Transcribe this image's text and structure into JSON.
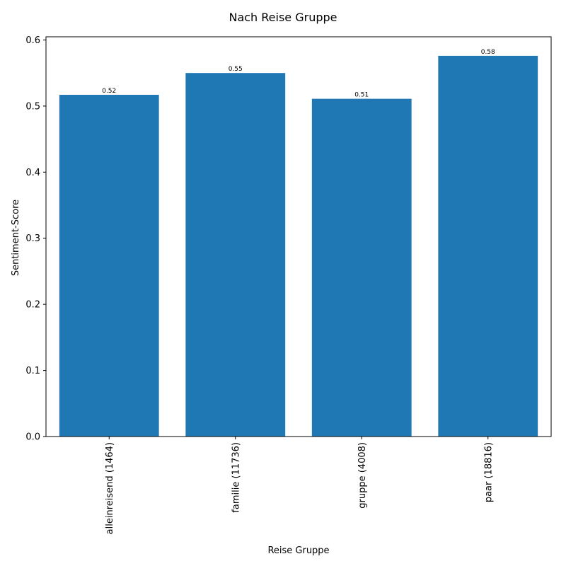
{
  "chart_data": {
    "type": "bar",
    "title": "Nach Reise Gruppe",
    "xlabel": "Reise Gruppe",
    "ylabel": "Sentiment-Score",
    "categories": [
      "alleinreisend (1464)",
      "familie (11736)",
      "gruppe (4008)",
      "paar (18816)"
    ],
    "values": [
      0.517,
      0.55,
      0.511,
      0.576
    ],
    "data_labels": [
      "0.52",
      "0.55",
      "0.51",
      "0.58"
    ],
    "yticks": [
      0.0,
      0.1,
      0.2,
      0.3,
      0.4,
      0.5,
      0.6
    ],
    "ytick_labels": [
      "0.0",
      "0.1",
      "0.2",
      "0.3",
      "0.4",
      "0.5",
      "0.6"
    ],
    "ylim": [
      0,
      0.6048
    ],
    "grid": false,
    "legend": "none",
    "bar_color": "#1f77b4"
  }
}
